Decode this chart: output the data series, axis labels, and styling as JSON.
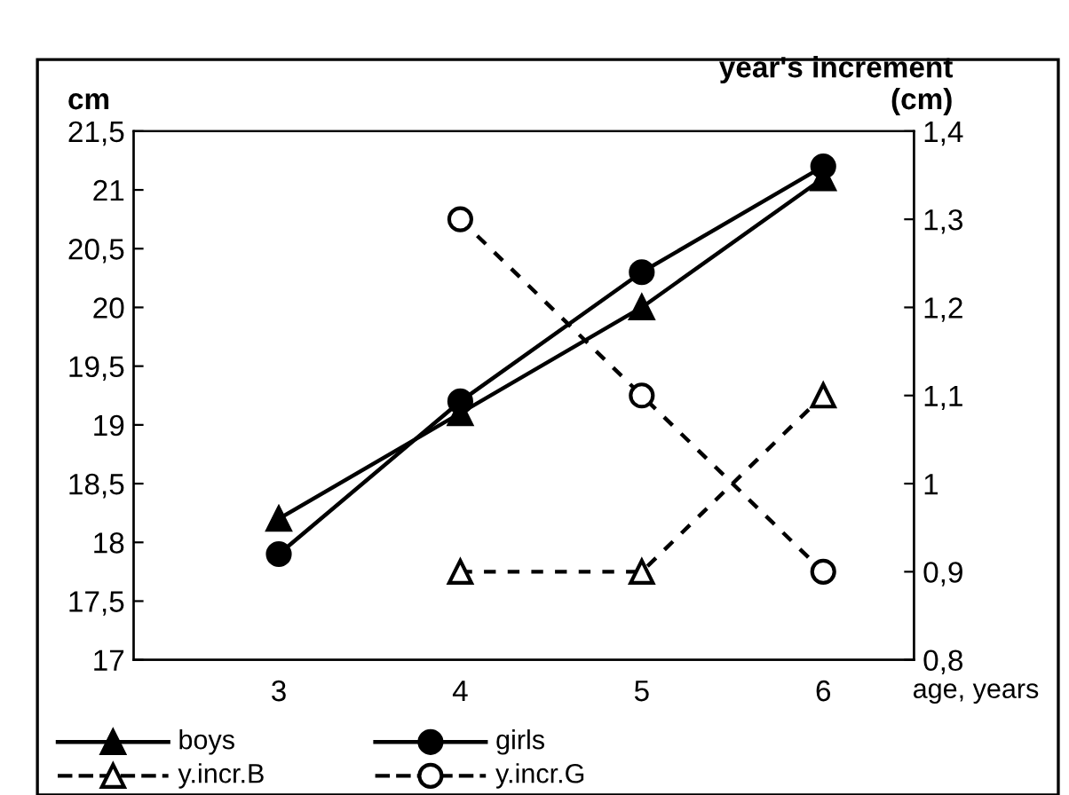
{
  "chart_data": {
    "type": "line",
    "categories": [
      "3",
      "4",
      "5",
      "6"
    ],
    "xlabel": "age, years",
    "ylabel": "cm",
    "y2label": "year's increment\n(cm)",
    "series": [
      {
        "name": "boys",
        "color": "#000000",
        "marker": "triangle",
        "line_style": "solid",
        "values": [
          18.2,
          19.1,
          20.0,
          21.1
        ]
      },
      {
        "name": "girls",
        "color": "#000000",
        "marker": "circle",
        "line_style": "solid",
        "values": [
          17.9,
          19.2,
          20.3,
          21.2
        ]
      },
      {
        "name": "y.incr.B",
        "color": "#000000",
        "marker": "triangle",
        "line_style": "dashed",
        "axis": "y2",
        "values": [
          null,
          0.9,
          0.9,
          1.1
        ]
      },
      {
        "name": "y.incr.G",
        "color": "#000000",
        "marker": "circle",
        "line_style": "dashed",
        "axis": "y2",
        "values": [
          null,
          1.3,
          1.1,
          0.9
        ]
      }
    ],
    "ylim": [
      17,
      21.5
    ],
    "yticks": [
      {
        "value": 17,
        "label": "17"
      },
      {
        "value": 17.5,
        "label": "17,5"
      },
      {
        "value": 18,
        "label": "18"
      },
      {
        "value": 18.5,
        "label": "18,5"
      },
      {
        "value": 19,
        "label": "19"
      },
      {
        "value": 19.5,
        "label": "19,5"
      },
      {
        "value": 20,
        "label": "20"
      },
      {
        "value": 20.5,
        "label": "20,5"
      },
      {
        "value": 21,
        "label": "21"
      },
      {
        "value": 21.5,
        "label": "21,5"
      }
    ],
    "y2lim": [
      0.8,
      1.4
    ],
    "y2ticks": [
      {
        "value": 0.8,
        "label": "0,8"
      },
      {
        "value": 0.9,
        "label": "0,9"
      },
      {
        "value": 1,
        "label": "1"
      },
      {
        "value": 1.1,
        "label": "1,1"
      },
      {
        "value": 1.2,
        "label": "1,2"
      },
      {
        "value": 1.3,
        "label": "1,3"
      },
      {
        "value": 1.4,
        "label": "1,4"
      }
    ],
    "grid": false,
    "legend": "bottom"
  }
}
